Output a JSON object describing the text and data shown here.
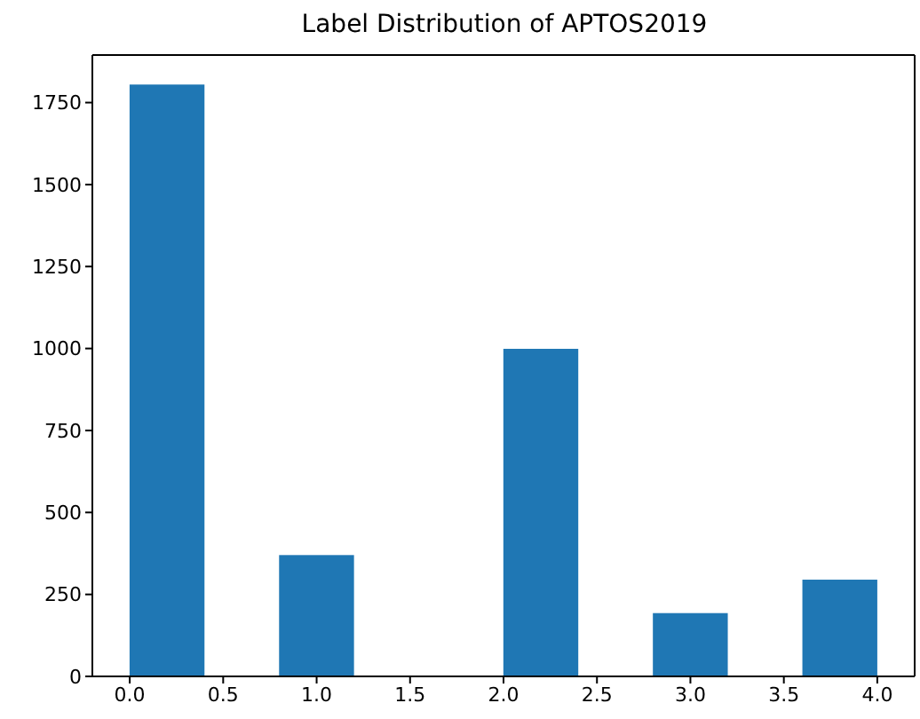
{
  "chart_data": {
    "type": "histogram",
    "title": "Label Distribution of APTOS2019",
    "bins": [
      0,
      0.4,
      0.8,
      1.2,
      1.6,
      2.0,
      2.4,
      2.8,
      3.2,
      3.6,
      4.0
    ],
    "values": [
      1805,
      0,
      370,
      0,
      0,
      999,
      0,
      193,
      0,
      295
    ],
    "color": "#1f77b4",
    "xlim": [
      -0.2,
      4.2
    ],
    "xticks": [
      {
        "value": 0,
        "label": "0.0"
      },
      {
        "value": 0.5,
        "label": "0.5"
      },
      {
        "value": 1,
        "label": "1.0"
      },
      {
        "value": 1.5,
        "label": "1.5"
      },
      {
        "value": 2,
        "label": "2.0"
      },
      {
        "value": 2.5,
        "label": "2.5"
      },
      {
        "value": 3,
        "label": "3.0"
      },
      {
        "value": 3.5,
        "label": "3.5"
      },
      {
        "value": 4,
        "label": "4.0"
      }
    ],
    "ylim": [
      0,
      1895
    ],
    "yticks": [
      0,
      250,
      500,
      750,
      1000,
      1250,
      1500,
      1750
    ],
    "grid": false
  }
}
